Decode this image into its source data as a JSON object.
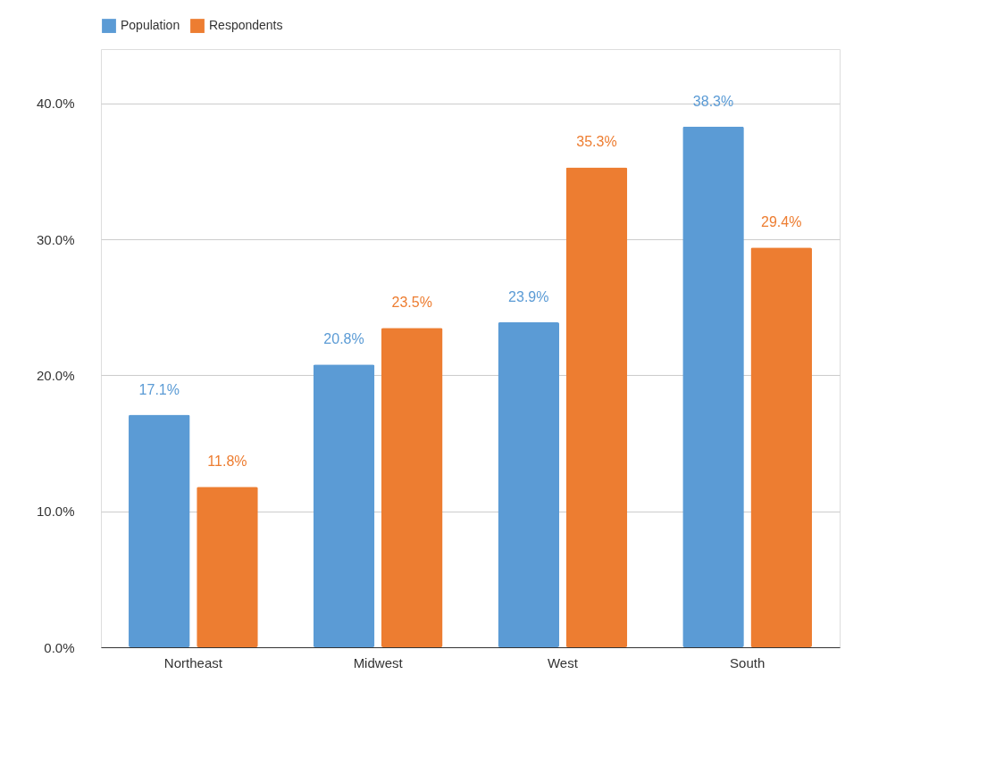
{
  "chart_data": {
    "type": "bar",
    "categories": [
      "Northeast",
      "Midwest",
      "West",
      "South"
    ],
    "series": [
      {
        "name": "Population",
        "color": "#5b9bd5",
        "values": [
          17.1,
          20.8,
          23.9,
          38.3
        ],
        "value_labels": [
          "17.1%",
          "20.8%",
          "23.9%",
          "38.3%"
        ]
      },
      {
        "name": "Respondents",
        "color": "#ed7d31",
        "values": [
          11.8,
          23.5,
          35.3,
          29.4
        ],
        "value_labels": [
          "11.8%",
          "23.5%",
          "35.3%",
          "29.4%"
        ]
      }
    ],
    "ylim": [
      0,
      44
    ],
    "yticks": [
      {
        "value": 0,
        "label": "0.0%"
      },
      {
        "value": 10,
        "label": "10.0%"
      },
      {
        "value": 20,
        "label": "20.0%"
      },
      {
        "value": 30,
        "label": "30.0%"
      },
      {
        "value": 40,
        "label": "40.0%"
      }
    ],
    "grid": "y",
    "legend": "top"
  }
}
